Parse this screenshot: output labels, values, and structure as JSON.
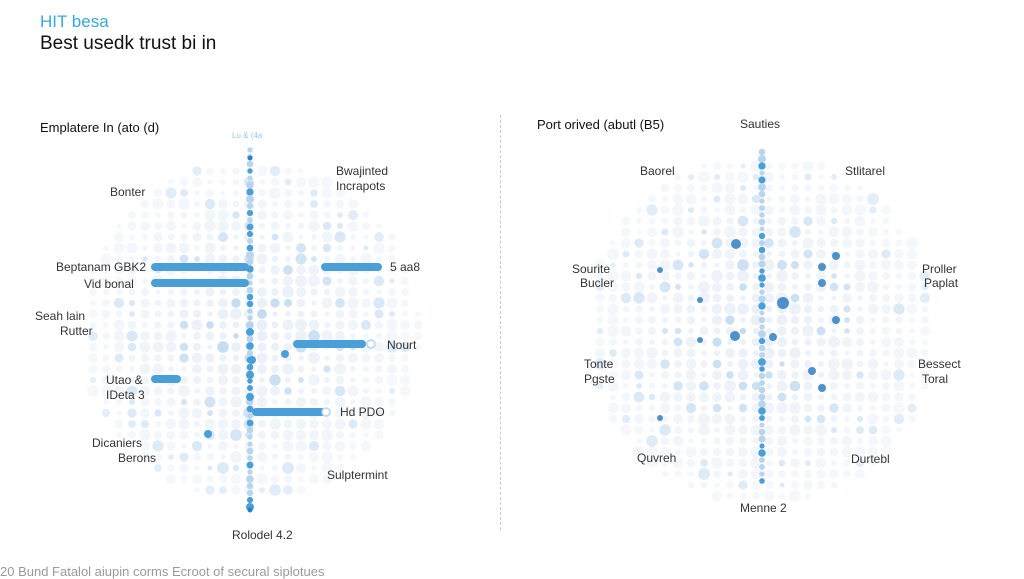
{
  "header": {
    "kicker": "HIT besa",
    "title": "Best usedk trust bi in"
  },
  "left_panel": {
    "title": "Emplatere In (ato (d)",
    "top_label": "Lu & (4a",
    "labels": {
      "bonter": "Bonter",
      "top_right_1": "Bwajinted",
      "top_right_2": "Incrapots",
      "bar1": "Beptanam GBK2",
      "bar2": "Vid bonal",
      "bar3": "5 aa8",
      "left_mid_1": "Seah lain",
      "left_mid_2": "Rutter",
      "bar4": "Nourt",
      "bar5_1": "Utao &",
      "bar5_2": "IDeta 3",
      "bar6": "Hd PDO",
      "bottom_left_1": "Dicaniers",
      "bottom_left_2": "Berons",
      "bottom_right": "Sulptermint",
      "bottom": "Rolodel 4.2"
    }
  },
  "right_panel": {
    "title": "Port orived (abutl (B5)",
    "labels": {
      "top": "Sauties",
      "top_left": "Baorel",
      "top_right": "Stlitarel",
      "left_1": "Sourite",
      "left_2": "Bucler",
      "right_1": "Proller",
      "right_2": "Paplat",
      "lower_left_1": "Tonte",
      "lower_left_2": "Pgste",
      "lower_right_1": "Bessect",
      "lower_right_2": "Toral",
      "bottom_left": "Quvreh",
      "bottom_right": "Durtebl",
      "bottom": "Menne 2"
    }
  },
  "caption": "20 Bund Fatalol aiupin corms Ecroot of secural siplotues",
  "colors": {
    "accent": "#4a9fd8",
    "dot_light": "#e6eef6",
    "dot_mid": "#b9d5ee",
    "dark_dot": "#2f7fc4"
  }
}
